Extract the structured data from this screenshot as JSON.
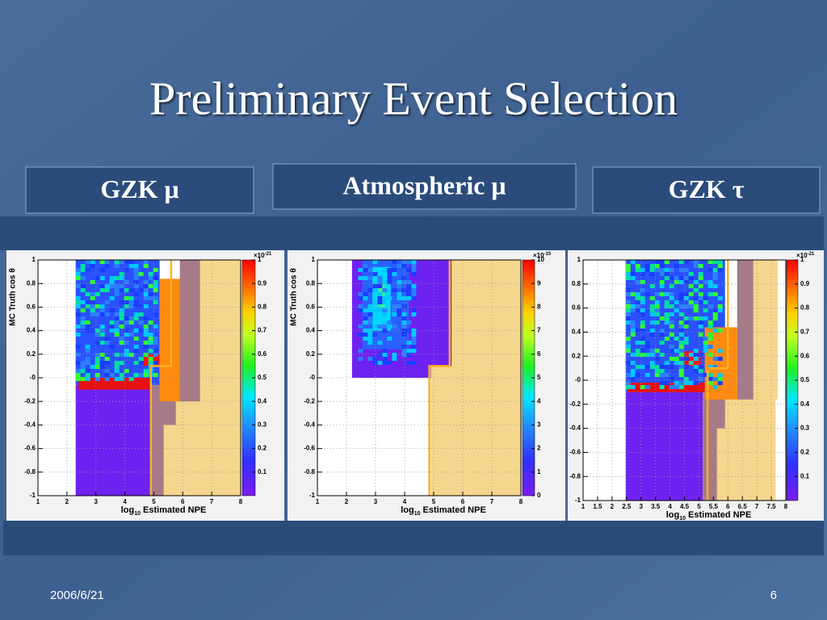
{
  "title": "Preliminary Event Selection",
  "panels": [
    {
      "label": "GZK  μ",
      "chart": {
        "type": "heatmap",
        "ylabel": "MC Truth cos θ",
        "xlabel": {
          "base": "log",
          "sub": "10",
          "rest": " Estimated NPE"
        },
        "xlim": [
          1,
          8
        ],
        "xticks": [
          1,
          2,
          3,
          4,
          5,
          6,
          7,
          8
        ],
        "ylim": [
          -1,
          1
        ],
        "yticks": [
          1,
          0.8,
          0.6,
          0.4,
          0.2,
          {
            "value": 0,
            "label": "-0"
          },
          -0.2,
          -0.4,
          -0.6,
          -0.8,
          -1
        ],
        "zlim": [
          0,
          1
        ],
        "zticks": [
          0.1,
          0.2,
          0.3,
          0.4,
          0.5,
          0.6,
          0.7,
          0.8,
          0.9,
          1
        ],
        "zscale": {
          "base": "×10",
          "exp": "-21"
        },
        "cut": {
          "x": [
            4.9,
            4.9,
            5.6,
            5.6
          ],
          "y": [
            -1,
            0.1,
            0.1,
            1
          ]
        }
      }
    },
    {
      "label": "Atmospheric  μ",
      "chart": {
        "type": "heatmap",
        "ylabel": "MC Truth cos θ",
        "xlabel": {
          "base": "log",
          "sub": "10",
          "rest": " Estimated NPE"
        },
        "xlim": [
          1,
          8
        ],
        "xticks": [
          1,
          2,
          3,
          4,
          5,
          6,
          7,
          8
        ],
        "ylim": [
          -1,
          1
        ],
        "yticks": [
          1,
          0.8,
          0.6,
          0.4,
          0.2,
          {
            "value": 0,
            "label": "-0"
          },
          -0.2,
          -0.4,
          -0.6,
          -0.8,
          -1
        ],
        "zlim": [
          0,
          10
        ],
        "zticks": [
          0,
          1,
          2,
          3,
          4,
          5,
          6,
          7,
          8,
          9,
          10
        ],
        "zscale": {
          "base": "×10",
          "exp": "-15"
        },
        "cut": {
          "x": [
            4.85,
            4.85,
            5.55,
            5.55
          ],
          "y": [
            -1,
            0.1,
            0.1,
            1
          ]
        }
      }
    },
    {
      "label": "GZK  τ",
      "chart": {
        "type": "heatmap",
        "xlabel": {
          "base": "log",
          "sub": "10",
          "rest": " Estimated NPE"
        },
        "xlim": [
          1,
          8
        ],
        "xticks": [
          1,
          1.5,
          2,
          2.5,
          3,
          3.5,
          4,
          4.5,
          5,
          5.5,
          6,
          6.5,
          7,
          7.5,
          8
        ],
        "ylim": [
          -1,
          1
        ],
        "yticks": [
          1,
          0.8,
          0.6,
          0.4,
          0.2,
          {
            "value": 0,
            "label": "-0"
          },
          -0.2,
          -0.4,
          -0.6,
          -0.8,
          -1
        ],
        "zlim": [
          0,
          1
        ],
        "zticks": [
          0.1,
          0.2,
          0.3,
          0.4,
          0.5,
          0.6,
          0.7,
          0.8,
          0.9,
          1
        ],
        "zscale": {
          "base": "×10",
          "exp": "-21"
        },
        "cut": {
          "x": [
            5.3,
            5.3,
            6,
            6
          ],
          "y": [
            -1,
            0.1,
            0.1,
            1
          ]
        }
      }
    }
  ],
  "footer": {
    "date": "2006/6/21",
    "page": "6"
  }
}
